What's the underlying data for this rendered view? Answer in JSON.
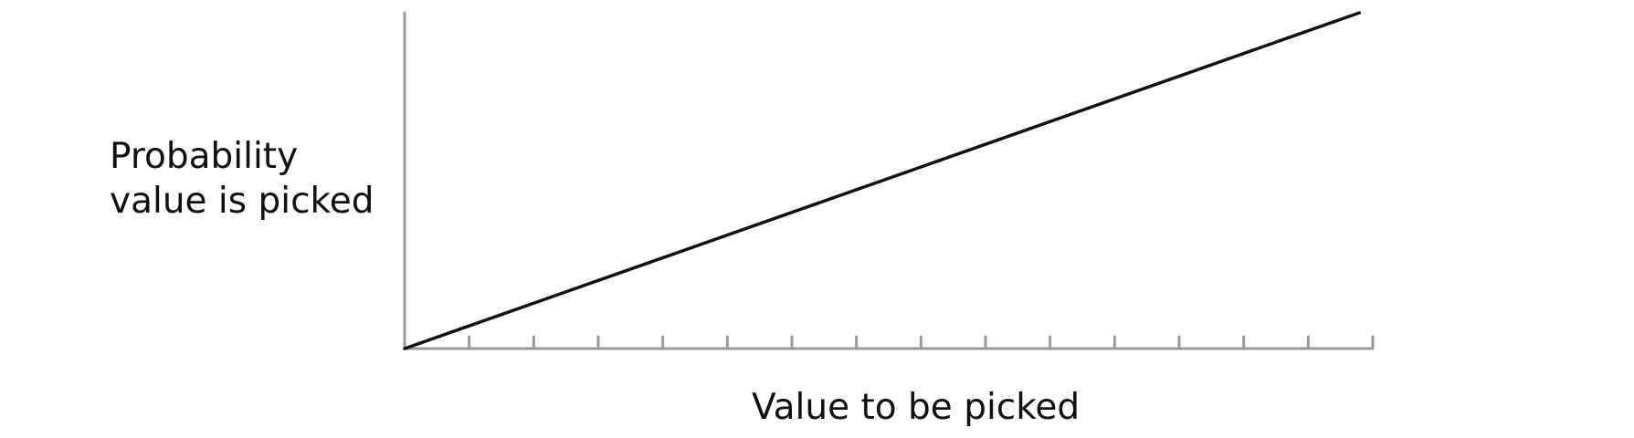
{
  "chart_data": {
    "type": "line",
    "title": "",
    "xlabel": "Value to be picked",
    "ylabel": "Probability\nvalue is picked",
    "x_tick_count": 15,
    "grid": false,
    "legend": "none",
    "series": [
      {
        "x": [
          0,
          1
        ],
        "y": [
          0,
          1
        ]
      }
    ],
    "xlim": [
      0,
      1.014
    ],
    "ylim": [
      0,
      1.0
    ],
    "colors": {
      "axis": "#9a9a9a",
      "line": "#111111"
    }
  }
}
